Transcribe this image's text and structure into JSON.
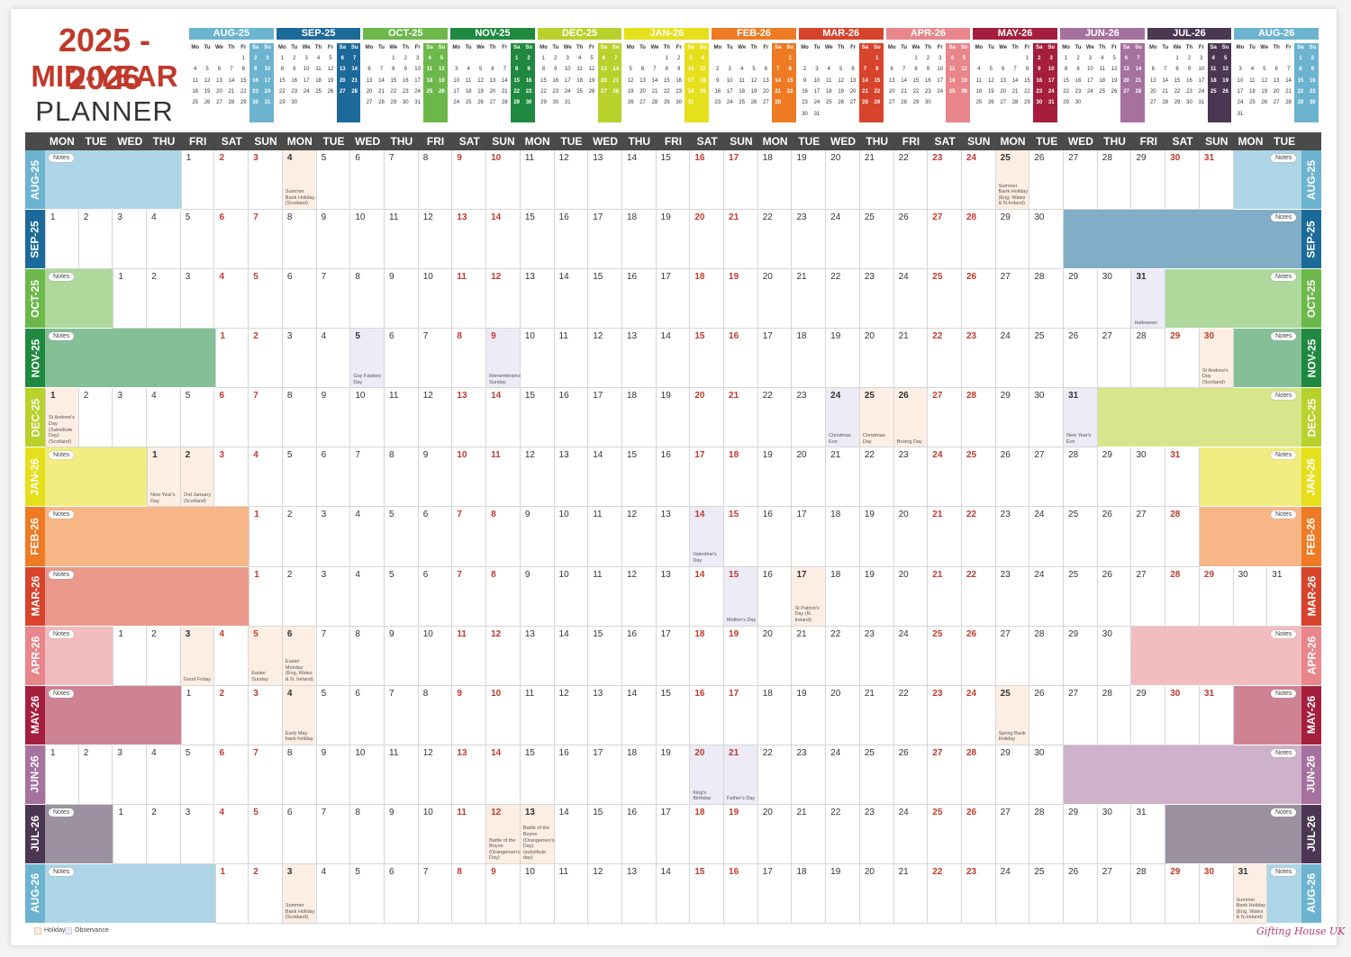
{
  "title": {
    "line1": "2025 - 2026",
    "line2": "MID-YEAR",
    "line3": "PLANNER"
  },
  "weekdays": [
    "MON",
    "TUE",
    "WED",
    "THU",
    "FRI",
    "SAT",
    "SUN"
  ],
  "mini_weekdays": [
    "Mo",
    "Tu",
    "We",
    "Th",
    "Fr",
    "Sa",
    "Su"
  ],
  "notes_label": "Notes",
  "legend": {
    "holiday": "Holidays",
    "observance": "Observance"
  },
  "brand": "Gifting House UK",
  "months": [
    {
      "label": "AUG-25",
      "color": "#6cb3cf",
      "days": [
        null,
        null,
        null,
        null,
        1,
        2,
        3,
        4,
        5,
        6,
        7,
        8,
        9,
        10,
        11,
        12,
        13,
        14,
        15,
        16,
        17,
        18,
        19,
        20,
        21,
        22,
        23,
        24,
        25,
        26,
        27,
        28,
        29,
        30,
        31
      ],
      "events": [
        {
          "day": 4,
          "text": "Summer Bank Holiday (Scotland)",
          "kind": "holiday"
        },
        {
          "day": 25,
          "text": "Summer Bank Holiday (Eng, Wales & N.Ireland)",
          "kind": "holiday"
        }
      ]
    },
    {
      "label": "SEP-25",
      "color": "#1c6a99",
      "days": [
        1,
        2,
        3,
        4,
        5,
        6,
        7,
        8,
        9,
        10,
        11,
        12,
        13,
        14,
        15,
        16,
        17,
        18,
        19,
        20,
        21,
        22,
        23,
        24,
        25,
        26,
        27,
        28,
        29,
        30
      ],
      "events": []
    },
    {
      "label": "OCT-25",
      "color": "#6db84b",
      "days": [
        null,
        null,
        1,
        2,
        3,
        4,
        5,
        6,
        7,
        8,
        9,
        10,
        11,
        12,
        13,
        14,
        15,
        16,
        17,
        18,
        19,
        20,
        21,
        22,
        23,
        24,
        25,
        26,
        27,
        28,
        29,
        30,
        31
      ],
      "events": [
        {
          "day": 31,
          "text": "Halloween",
          "kind": "observance"
        }
      ]
    },
    {
      "label": "NOV-25",
      "color": "#1f8a3f",
      "days": [
        null,
        null,
        null,
        null,
        null,
        1,
        2,
        3,
        4,
        5,
        6,
        7,
        8,
        9,
        10,
        11,
        12,
        13,
        14,
        15,
        16,
        17,
        18,
        19,
        20,
        21,
        22,
        23,
        24,
        25,
        26,
        27,
        28,
        29,
        30
      ],
      "events": [
        {
          "day": 5,
          "text": "Guy Fawkes Day",
          "kind": "observance"
        },
        {
          "day": 9,
          "text": "Remembrance Sunday",
          "kind": "observance"
        },
        {
          "day": 30,
          "text": "St Andrew's Day (Scotland)",
          "kind": "holiday"
        }
      ]
    },
    {
      "label": "DEC-25",
      "color": "#b8d12b",
      "days": [
        1,
        2,
        3,
        4,
        5,
        6,
        7,
        8,
        9,
        10,
        11,
        12,
        13,
        14,
        15,
        16,
        17,
        18,
        19,
        20,
        21,
        22,
        23,
        24,
        25,
        26,
        27,
        28,
        29,
        30,
        31
      ],
      "events": [
        {
          "day": 1,
          "text": "St Andrew's Day (Substitute Day) (Scotland)",
          "kind": "holiday"
        },
        {
          "day": 24,
          "text": "Christmas Eve",
          "kind": "observance"
        },
        {
          "day": 25,
          "text": "Christmas Day",
          "kind": "holiday"
        },
        {
          "day": 26,
          "text": "Boxing Day",
          "kind": "holiday"
        },
        {
          "day": 31,
          "text": "New Year's Eve",
          "kind": "observance"
        }
      ]
    },
    {
      "label": "JAN-26",
      "color": "#e6df1c",
      "days": [
        null,
        null,
        null,
        1,
        2,
        3,
        4,
        5,
        6,
        7,
        8,
        9,
        10,
        11,
        12,
        13,
        14,
        15,
        16,
        17,
        18,
        19,
        20,
        21,
        22,
        23,
        24,
        25,
        26,
        27,
        28,
        29,
        30,
        31
      ],
      "events": [
        {
          "day": 1,
          "text": "New Year's Day",
          "kind": "holiday"
        },
        {
          "day": 2,
          "text": "2nd January (Scotland)",
          "kind": "holiday"
        }
      ]
    },
    {
      "label": "FEB-26",
      "color": "#ee7a23",
      "days": [
        null,
        null,
        null,
        null,
        null,
        null,
        1,
        2,
        3,
        4,
        5,
        6,
        7,
        8,
        9,
        10,
        11,
        12,
        13,
        14,
        15,
        16,
        17,
        18,
        19,
        20,
        21,
        22,
        23,
        24,
        25,
        26,
        27,
        28
      ],
      "events": [
        {
          "day": 14,
          "text": "Valentine's Day",
          "kind": "observance"
        }
      ]
    },
    {
      "label": "MAR-26",
      "color": "#d8432b",
      "days": [
        null,
        null,
        null,
        null,
        null,
        null,
        1,
        2,
        3,
        4,
        5,
        6,
        7,
        8,
        9,
        10,
        11,
        12,
        13,
        14,
        15,
        16,
        17,
        18,
        19,
        20,
        21,
        22,
        23,
        24,
        25,
        26,
        27,
        28,
        29,
        30,
        31
      ],
      "events": [
        {
          "day": 15,
          "text": "Mother's Day",
          "kind": "observance"
        },
        {
          "day": 17,
          "text": "St Patrick's Day (N. Ireland)",
          "kind": "holiday"
        }
      ]
    },
    {
      "label": "APR-26",
      "color": "#e8868b",
      "days": [
        null,
        null,
        1,
        2,
        3,
        4,
        5,
        6,
        7,
        8,
        9,
        10,
        11,
        12,
        13,
        14,
        15,
        16,
        17,
        18,
        19,
        20,
        21,
        22,
        23,
        24,
        25,
        26,
        27,
        28,
        29,
        30
      ],
      "events": [
        {
          "day": 3,
          "text": "Good Friday",
          "kind": "holiday"
        },
        {
          "day": 5,
          "text": "Easter Sunday",
          "kind": "holiday"
        },
        {
          "day": 6,
          "text": "Easter Monday (Eng, Wales & N. Ireland)",
          "kind": "holiday"
        }
      ]
    },
    {
      "label": "MAY-26",
      "color": "#a51e3d",
      "days": [
        null,
        null,
        null,
        null,
        1,
        2,
        3,
        4,
        5,
        6,
        7,
        8,
        9,
        10,
        11,
        12,
        13,
        14,
        15,
        16,
        17,
        18,
        19,
        20,
        21,
        22,
        23,
        24,
        25,
        26,
        27,
        28,
        29,
        30,
        31
      ],
      "events": [
        {
          "day": 4,
          "text": "Early May bank holiday",
          "kind": "holiday"
        },
        {
          "day": 25,
          "text": "Spring Bank Holiday",
          "kind": "holiday"
        }
      ]
    },
    {
      "label": "JUN-26",
      "color": "#a5719e",
      "days": [
        1,
        2,
        3,
        4,
        5,
        6,
        7,
        8,
        9,
        10,
        11,
        12,
        13,
        14,
        15,
        16,
        17,
        18,
        19,
        20,
        21,
        22,
        23,
        24,
        25,
        26,
        27,
        28,
        29,
        30
      ],
      "events": [
        {
          "day": 20,
          "text": "King's Birthday",
          "kind": "observance"
        },
        {
          "day": 21,
          "text": "Father's Day",
          "kind": "observance"
        }
      ]
    },
    {
      "label": "JUL-26",
      "color": "#4b3752",
      "days": [
        null,
        null,
        1,
        2,
        3,
        4,
        5,
        6,
        7,
        8,
        9,
        10,
        11,
        12,
        13,
        14,
        15,
        16,
        17,
        18,
        19,
        20,
        21,
        22,
        23,
        24,
        25,
        26,
        27,
        28,
        29,
        30,
        31
      ],
      "events": [
        {
          "day": 12,
          "text": "Battle of the Boyne (Orangemen's Day)",
          "kind": "holiday"
        },
        {
          "day": 13,
          "text": "Battle of the Boyne (Orangemen's Day) (substitute day)",
          "kind": "holiday"
        }
      ]
    },
    {
      "label": "AUG-26",
      "color": "#6cb3cf",
      "days": [
        null,
        null,
        null,
        null,
        null,
        1,
        2,
        3,
        4,
        5,
        6,
        7,
        8,
        9,
        10,
        11,
        12,
        13,
        14,
        15,
        16,
        17,
        18,
        19,
        20,
        21,
        22,
        23,
        24,
        25,
        26,
        27,
        28,
        29,
        30,
        31
      ],
      "events": [
        {
          "day": 3,
          "text": "Summer Bank Holiday (Scotland)",
          "kind": "holiday"
        },
        {
          "day": 31,
          "text": "Summer Bank Holiday (Eng, Wales & N.Ireland)",
          "kind": "holiday"
        }
      ]
    }
  ]
}
